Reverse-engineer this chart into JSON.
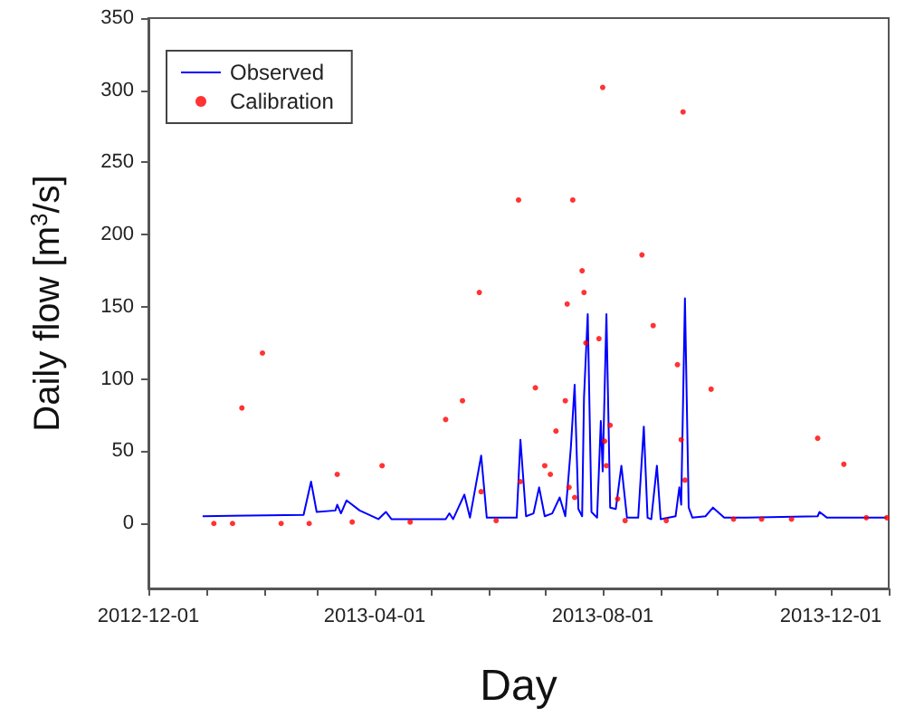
{
  "chart_data": {
    "type": "line",
    "xlabel": "Day",
    "ylabel": "Daily flow [m$^{3}$/s]",
    "xlim": [
      "2012-12-01",
      "2014-01-01"
    ],
    "xticks": [
      {
        "value": "2012-12-01",
        "label": "2012-12-01"
      },
      {
        "value": "2013-01-01",
        "label": null
      },
      {
        "value": "2013-02-01",
        "label": null
      },
      {
        "value": "2013-03-01",
        "label": null
      },
      {
        "value": "2013-04-01",
        "label": "2013-04-01"
      },
      {
        "value": "2013-05-01",
        "label": null
      },
      {
        "value": "2013-06-01",
        "label": null
      },
      {
        "value": "2013-07-01",
        "label": null
      },
      {
        "value": "2013-08-01",
        "label": "2013-08-01"
      },
      {
        "value": "2013-09-01",
        "label": null
      },
      {
        "value": "2013-10-01",
        "label": null
      },
      {
        "value": "2013-11-01",
        "label": null
      },
      {
        "value": "2013-12-01",
        "label": "2013-12-01"
      },
      {
        "value": "2014-01-01",
        "label": null
      }
    ],
    "ylim": [
      -45,
      350
    ],
    "yticks": [
      0,
      50,
      100,
      150,
      200,
      250,
      300,
      350
    ],
    "grid": false,
    "legend": "top left",
    "series": [
      {
        "name": "Observed",
        "color": "#0000ff",
        "marker": "none",
        "line_style": "solid",
        "x": [
          "2012-12-30",
          "2013-02-22",
          "2013-02-26",
          "2013-03-01",
          "2013-03-11",
          "2013-03-12",
          "2013-03-14",
          "2013-03-17",
          "2013-03-24",
          "2013-04-03",
          "2013-04-07",
          "2013-04-10",
          "2013-05-09",
          "2013-05-11",
          "2013-05-13",
          "2013-05-19",
          "2013-05-22",
          "2013-05-28",
          "2013-05-31",
          "2013-06-16",
          "2013-06-18",
          "2013-06-21",
          "2013-06-25",
          "2013-06-28",
          "2013-07-01",
          "2013-07-05",
          "2013-07-09",
          "2013-07-12",
          "2013-07-15",
          "2013-07-17",
          "2013-07-19",
          "2013-07-21",
          "2013-07-22",
          "2013-07-24",
          "2013-07-26",
          "2013-07-29",
          "2013-07-31",
          "2013-08-01",
          "2013-08-03",
          "2013-08-05",
          "2013-08-08",
          "2013-08-11",
          "2013-08-14",
          "2013-08-20",
          "2013-08-23",
          "2013-08-25",
          "2013-08-27",
          "2013-08-30",
          "2013-09-01",
          "2013-09-09",
          "2013-09-11",
          "2013-09-12",
          "2013-09-14",
          "2013-09-16",
          "2013-09-18",
          "2013-09-25",
          "2013-09-29",
          "2013-10-05",
          "2013-10-17",
          "2013-11-24",
          "2013-11-25",
          "2013-11-29",
          "2013-12-31"
        ],
        "values": [
          5,
          6,
          29,
          8,
          9,
          13,
          7,
          16,
          9,
          3,
          8,
          3,
          3,
          7,
          3,
          20,
          4,
          47,
          4,
          4,
          58,
          5,
          7,
          25,
          5,
          7,
          18,
          5,
          53,
          96,
          10,
          5,
          87,
          145,
          8,
          4,
          71,
          36,
          145,
          11,
          10,
          40,
          4,
          4,
          67,
          4,
          3,
          40,
          3,
          5,
          25,
          13,
          156,
          11,
          4,
          5,
          11,
          4,
          4,
          5,
          8,
          4,
          4
        ]
      },
      {
        "name": "Calibration",
        "type": "scatter",
        "color": "#ff0000",
        "marker": "circle",
        "x": [
          "2013-01-05",
          "2013-01-15",
          "2013-01-20",
          "2013-01-31",
          "2013-02-10",
          "2013-02-25",
          "2013-03-12",
          "2013-03-20",
          "2013-04-05",
          "2013-04-20",
          "2013-05-09",
          "2013-05-18",
          "2013-05-27",
          "2013-05-28",
          "2013-06-05",
          "2013-06-17",
          "2013-06-18",
          "2013-06-26",
          "2013-07-01",
          "2013-07-04",
          "2013-07-07",
          "2013-07-12",
          "2013-07-13",
          "2013-07-14",
          "2013-07-16",
          "2013-07-17",
          "2013-07-21",
          "2013-07-22",
          "2013-07-23",
          "2013-07-30",
          "2013-08-01",
          "2013-08-02",
          "2013-08-03",
          "2013-08-05",
          "2013-08-09",
          "2013-08-13",
          "2013-08-22",
          "2013-08-28",
          "2013-09-04",
          "2013-09-10",
          "2013-09-12",
          "2013-09-13",
          "2013-09-14",
          "2013-09-28",
          "2013-10-10",
          "2013-10-25",
          "2013-11-10",
          "2013-11-24",
          "2013-12-08",
          "2013-12-20",
          "2013-12-31"
        ],
        "values": [
          0,
          0,
          80,
          118,
          0,
          0,
          34,
          1,
          40,
          1,
          72,
          85,
          160,
          22,
          2,
          224,
          29,
          94,
          40,
          34,
          64,
          85,
          152,
          25,
          224,
          18,
          175,
          160,
          125,
          128,
          302,
          57,
          40,
          68,
          17,
          2,
          186,
          137,
          2,
          110,
          58,
          285,
          30,
          93,
          3,
          3,
          3,
          59,
          41,
          4,
          4
        ]
      }
    ]
  }
}
